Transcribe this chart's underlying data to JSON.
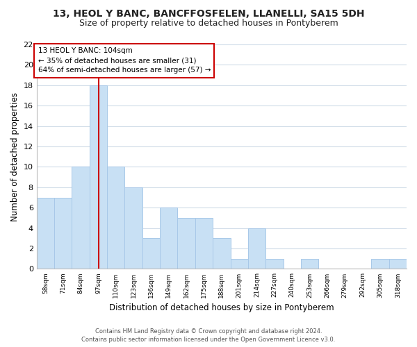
{
  "title": "13, HEOL Y BANC, BANCFFOSFELEN, LLANELLI, SA15 5DH",
  "subtitle": "Size of property relative to detached houses in Pontyberem",
  "xlabel": "Distribution of detached houses by size in Pontyberem",
  "ylabel": "Number of detached properties",
  "bin_labels": [
    "58sqm",
    "71sqm",
    "84sqm",
    "97sqm",
    "110sqm",
    "123sqm",
    "136sqm",
    "149sqm",
    "162sqm",
    "175sqm",
    "188sqm",
    "201sqm",
    "214sqm",
    "227sqm",
    "240sqm",
    "253sqm",
    "266sqm",
    "279sqm",
    "292sqm",
    "305sqm",
    "318sqm"
  ],
  "bin_edges": [
    58,
    71,
    84,
    97,
    110,
    123,
    136,
    149,
    162,
    175,
    188,
    201,
    214,
    227,
    240,
    253,
    266,
    279,
    292,
    305,
    318
  ],
  "counts": [
    7,
    7,
    10,
    18,
    10,
    8,
    3,
    6,
    5,
    5,
    3,
    1,
    4,
    1,
    0,
    1,
    0,
    0,
    0,
    1,
    1
  ],
  "bar_color": "#c8e0f4",
  "bar_edge_color": "#a8c8e8",
  "vline_x": 104,
  "vline_color": "#cc0000",
  "annotation_title": "13 HEOL Y BANC: 104sqm",
  "annotation_line1": "← 35% of detached houses are smaller (31)",
  "annotation_line2": "64% of semi-detached houses are larger (57) →",
  "annotation_box_facecolor": "#ffffff",
  "annotation_box_edgecolor": "#cc0000",
  "ylim": [
    0,
    22
  ],
  "yticks": [
    0,
    2,
    4,
    6,
    8,
    10,
    12,
    14,
    16,
    18,
    20,
    22
  ],
  "footer1": "Contains HM Land Registry data © Crown copyright and database right 2024.",
  "footer2": "Contains public sector information licensed under the Open Government Licence v3.0.",
  "bg_color": "#ffffff",
  "grid_color": "#d0dce8",
  "title_fontsize": 10,
  "subtitle_fontsize": 9
}
